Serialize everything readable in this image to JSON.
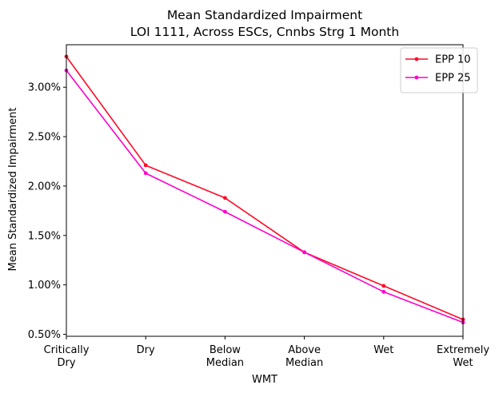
{
  "chart_data": {
    "type": "line",
    "title": "Mean Standardized Impairment",
    "subtitle": "LOI 1111, Across ESCs, Cnnbs Strg 1 Month",
    "xlabel": "WMT",
    "ylabel": "Mean Standardized Impairment",
    "categories": [
      [
        "Critically",
        "Dry"
      ],
      [
        "Dry"
      ],
      [
        "Below",
        "Median"
      ],
      [
        "Above",
        "Median"
      ],
      [
        "Wet"
      ],
      [
        "Extremely",
        "Wet"
      ]
    ],
    "y_ticks": [
      0.5,
      1.0,
      1.5,
      2.0,
      2.5,
      3.0
    ],
    "y_tick_labels": [
      "0.50%",
      "1.00%",
      "1.50%",
      "2.00%",
      "2.50%",
      "3.00%"
    ],
    "ylim": [
      0.48,
      3.43
    ],
    "grid": false,
    "legend_position": "top-right",
    "series": [
      {
        "name": "EPP 10",
        "color": "#ff0a28",
        "values": [
          3.31,
          2.21,
          1.88,
          1.33,
          0.99,
          0.65
        ]
      },
      {
        "name": "EPP 25",
        "color": "#ff00cc",
        "values": [
          3.17,
          2.13,
          1.74,
          1.33,
          0.93,
          0.62
        ]
      }
    ]
  }
}
